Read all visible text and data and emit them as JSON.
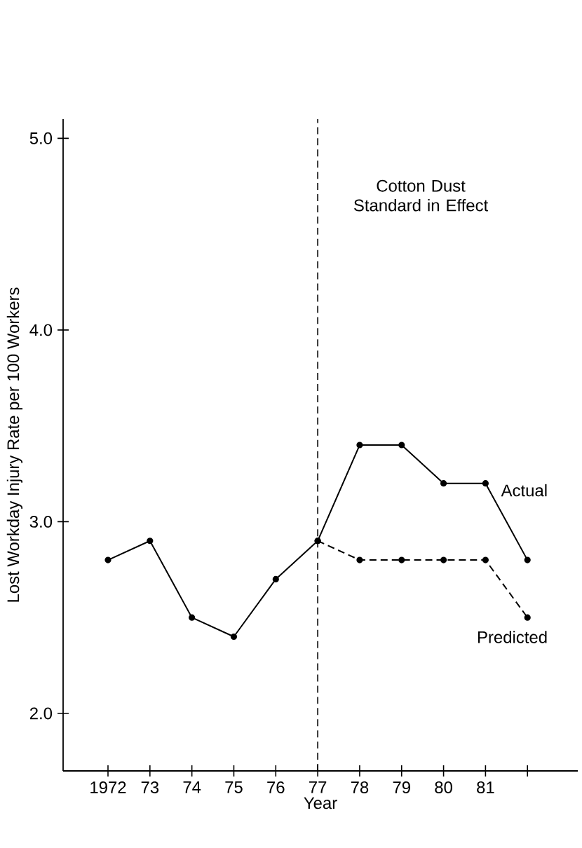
{
  "chart_data": {
    "type": "line",
    "xlabel": "Year",
    "ylabel": "Lost Workday Injury Rate per 100 Workers",
    "categories": [
      "1972",
      "73",
      "74",
      "75",
      "76",
      "77",
      "78",
      "79",
      "80",
      "81",
      null
    ],
    "series": [
      {
        "name": "Actual",
        "color": "#000000",
        "line_style": "solid",
        "values": [
          2.8,
          2.9,
          2.5,
          2.4,
          2.7,
          2.9,
          3.4,
          3.4,
          3.2,
          3.2,
          2.8
        ]
      },
      {
        "name": "Predicted",
        "color": "#000000",
        "line_style": "dashed",
        "values": [
          null,
          null,
          null,
          null,
          null,
          2.9,
          2.8,
          2.8,
          2.8,
          2.8,
          2.5
        ]
      }
    ],
    "ylim": [
      1.7,
      5.1
    ],
    "yticks": [
      {
        "value": 2,
        "label": "2.0"
      },
      {
        "value": 3,
        "label": "3.0"
      },
      {
        "value": 4,
        "label": "4.0"
      },
      {
        "value": 5,
        "label": "5.0"
      }
    ],
    "marker": "circle",
    "grid": false,
    "legend": false,
    "ref_lines": [
      {
        "axis": "x",
        "value": "77",
        "label": "Cotton Dust Standard in Effect",
        "line_style": "dashed"
      }
    ]
  }
}
